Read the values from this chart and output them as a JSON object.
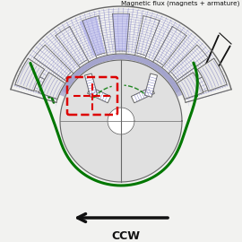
{
  "title": "Magnetic flux (magnets + armature)",
  "ccw_label": "CCW",
  "bg_color": "#f2f2f0",
  "flux_color_light": "#aaaadd",
  "flux_color": "#7777bb",
  "flux_color_dark": "#6666aa",
  "stator_fill": "#e8e8e8",
  "rotor_fill": "#e0e0e0",
  "white": "#ffffff",
  "gray": "#999999",
  "dark_gray": "#666666",
  "green": "#007700",
  "red": "#dd0000",
  "black": "#111111",
  "figsize": [
    2.7,
    2.7
  ],
  "dpi": 100,
  "xlim": [
    -135,
    135
  ],
  "ylim": [
    -145,
    125
  ],
  "stator_outer_r": 128,
  "stator_inner_r": 75,
  "rotor_r": 68,
  "shaft_r": 15,
  "n_stator_slots": 9,
  "stator_span_deg": 148
}
